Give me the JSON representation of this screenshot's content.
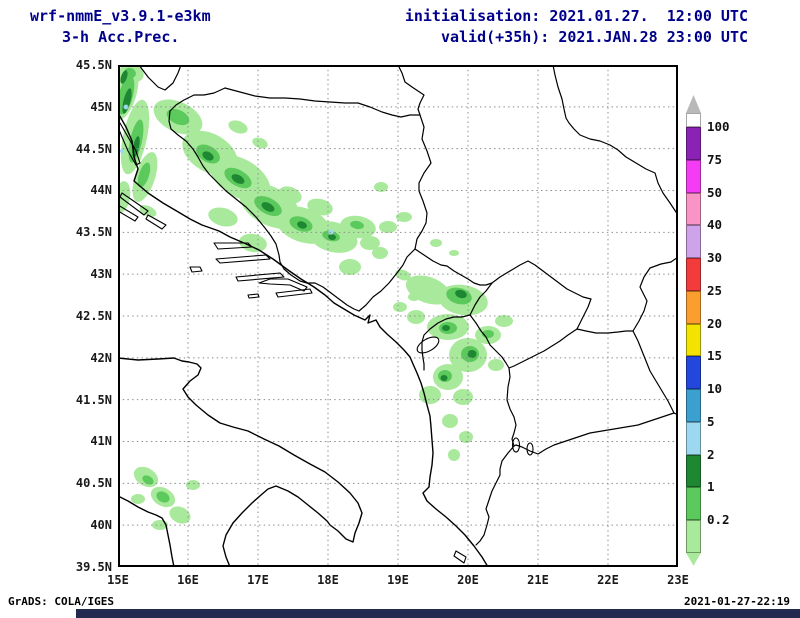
{
  "header": {
    "model": "wrf-nmmE_v3.9.1-e3km",
    "product": "3-h Acc.Prec.",
    "init_label": "initialisation: 2021.01.27.  12:00 UTC",
    "valid_label": "valid(+35h): 2021.JAN.28 23:00 UTC"
  },
  "footer": {
    "left": "GrADS: COLA/IGES",
    "right": "2021-01-27-22:19"
  },
  "axes": {
    "lat_labels": [
      "45.5N",
      "45N",
      "44.5N",
      "44N",
      "43.5N",
      "43N",
      "42.5N",
      "42N",
      "41.5N",
      "41N",
      "40.5N",
      "40N",
      "39.5N"
    ],
    "lon_labels": [
      "15E",
      "16E",
      "17E",
      "18E",
      "19E",
      "20E",
      "21E",
      "22E",
      "23E"
    ]
  },
  "colorbar": {
    "labels": [
      "100",
      "75",
      "50",
      "40",
      "30",
      "25",
      "20",
      "15",
      "10",
      "5",
      "2",
      "1",
      "0.2"
    ],
    "segment_colors_top_to_bottom": [
      "#ffffff",
      "#8a23b5",
      "#f43cf4",
      "#f995c6",
      "#cfa3e9",
      "#f43b3b",
      "#fc9e2e",
      "#f2e400",
      "#2347dd",
      "#3ba0d0",
      "#9cd9f0",
      "#1e8732",
      "#5cc95c",
      "#a9e99b"
    ],
    "arrow_color": "#b9b9b9"
  },
  "chart_data": {
    "type": "heatmap",
    "title": "wrf-nmmE_v3.9.1-e3km 3-h accumulated precipitation (mm)",
    "x_axis": {
      "ticks": [
        "15E",
        "16E",
        "17E",
        "18E",
        "19E",
        "20E",
        "21E",
        "22E",
        "23E"
      ],
      "range_deg_east": [
        15,
        23
      ]
    },
    "y_axis": {
      "ticks": [
        "45.5N",
        "45N",
        "44.5N",
        "44N",
        "43.5N",
        "43N",
        "42.5N",
        "42N",
        "41.5N",
        "41N",
        "40.5N",
        "40N",
        "39.5N"
      ],
      "range_deg_north": [
        39.5,
        45.5
      ]
    },
    "levels_mm": [
      0.2,
      1,
      2,
      5,
      10,
      15,
      20,
      25,
      30,
      40,
      50,
      75,
      100
    ],
    "level_colors_high_to_low": [
      "#ffffff",
      "#8a23b5",
      "#f43cf4",
      "#f995c6",
      "#cfa3e9",
      "#f43b3b",
      "#fc9e2e",
      "#f2e400",
      "#2347dd",
      "#3ba0d0",
      "#9cd9f0",
      "#1e8732",
      "#5cc95c",
      "#a9e99b"
    ],
    "initialisation": "2021.01.27. 12:00 UTC",
    "valid": "2021.JAN.28 23:00 UTC",
    "lead_hours": 35,
    "grid": "dotted graticule every 1 deg lon, 0.5 deg lat",
    "legend_position": "right vertical colorbar",
    "precip_regions_observed": [
      {
        "area": "NE Adriatic coast / Velebit (15-15.6E, 44-45.5N)",
        "value_band_mm": "0.2-5"
      },
      {
        "area": "Dinaric band across W/C Bosnia (15.8-18.7E, 43.2-44.8N)",
        "value_band_mm": "0.2-5"
      },
      {
        "area": "Montenegro / N Albania / Kosovo (18.9-20.5E, 41-43.1N)",
        "value_band_mm": "0.2-2"
      },
      {
        "area": "Southern Apennines, Italy (15-16.3E, 39.9-40.8N)",
        "value_band_mm": "0.2-1"
      }
    ]
  }
}
